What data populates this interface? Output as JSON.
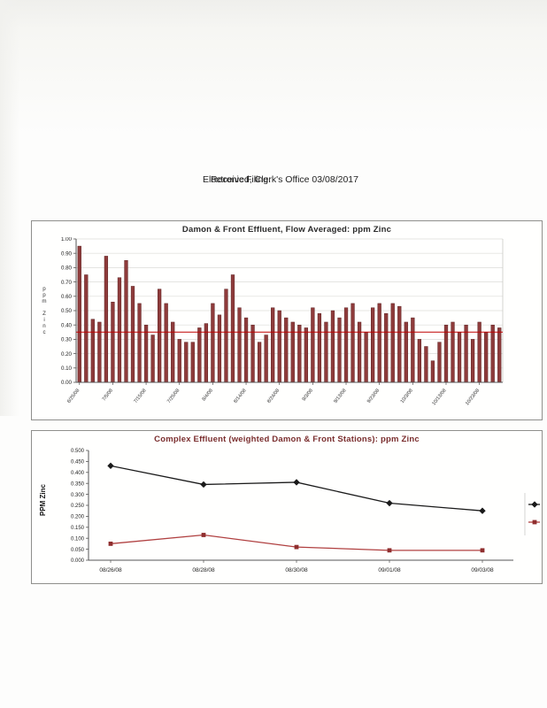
{
  "page": {
    "stamp_line1": "Electronic Filing:",
    "stamp_line2": "Received, Clerk's Office 03/08/2017",
    "background": "#fdfdfc"
  },
  "chart_data": [
    {
      "type": "bar",
      "title": "Damon & Front Effluent, Flow Averaged:  ppm Zinc",
      "title_color": "#2b2b2b",
      "ylabel": "ppm Zinc",
      "ylim": [
        0,
        1.0
      ],
      "ytick_step": 0.1,
      "ytick_decimals": 2,
      "grid": true,
      "ref_line": 0.35,
      "ref_line_color": "#c00000",
      "bar_color": "#8e3b3b",
      "bar_edge": "#5f2424",
      "label_every": 5,
      "x_labels": [
        "6/25/08",
        "7/5/08",
        "7/15/08",
        "7/25/08",
        "8/4/08",
        "8/14/08",
        "8/24/08",
        "9/3/08",
        "9/13/08",
        "9/23/08",
        "10/3/08",
        "10/13/08",
        "10/23/08"
      ],
      "values": [
        0.95,
        0.75,
        0.44,
        0.42,
        0.88,
        0.56,
        0.73,
        0.85,
        0.67,
        0.55,
        0.4,
        0.33,
        0.65,
        0.55,
        0.42,
        0.3,
        0.28,
        0.28,
        0.38,
        0.41,
        0.55,
        0.47,
        0.65,
        0.75,
        0.52,
        0.45,
        0.4,
        0.28,
        0.33,
        0.52,
        0.5,
        0.45,
        0.42,
        0.4,
        0.38,
        0.52,
        0.48,
        0.42,
        0.5,
        0.45,
        0.52,
        0.55,
        0.42,
        0.35,
        0.52,
        0.55,
        0.48,
        0.55,
        0.53,
        0.42,
        0.45,
        0.3,
        0.25,
        0.15,
        0.28,
        0.4,
        0.42,
        0.35,
        0.4,
        0.3,
        0.42,
        0.35,
        0.4,
        0.38
      ]
    },
    {
      "type": "line",
      "title": "Complex Effluent (weighted Damon & Front Stations):  ppm Zinc",
      "title_color": "#7a2e2e",
      "ylabel": "PPM Zinc",
      "ylim": [
        0,
        0.5
      ],
      "ytick_step": 0.05,
      "ytick_decimals": 3,
      "grid": false,
      "categories": [
        "08/26/08",
        "08/28/08",
        "08/30/08",
        "09/01/08",
        "09/03/08"
      ],
      "series": [
        {
          "name": "",
          "marker": "diamond",
          "color": "#1a1a1a",
          "values": [
            0.43,
            0.345,
            0.355,
            0.26,
            0.225
          ]
        },
        {
          "name": "",
          "marker": "square",
          "color": "#b04040",
          "marker_color": "#8f2e2e",
          "values": [
            0.075,
            0.115,
            0.06,
            0.045,
            0.045
          ]
        }
      ],
      "legend_position": "right-cutoff"
    }
  ]
}
